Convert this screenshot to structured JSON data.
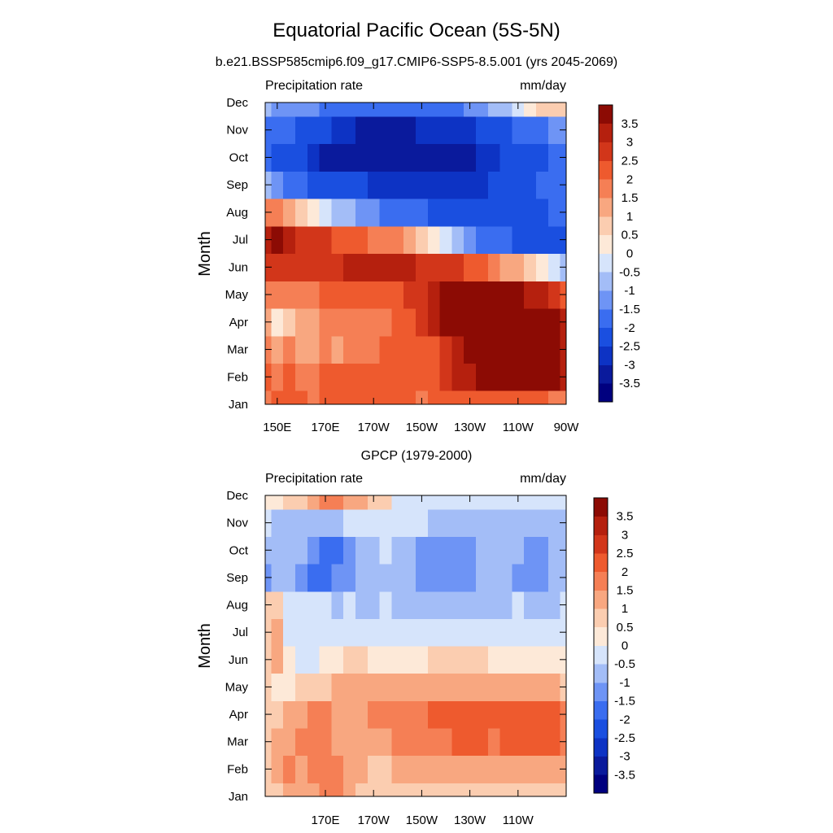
{
  "figure": {
    "title": "Equatorial Pacific Ocean (5S-5N)"
  },
  "colors": {
    "levels": [
      -3.5,
      -3,
      -2.5,
      -2,
      -1.5,
      -1,
      -0.5,
      0,
      0.5,
      1,
      1.5,
      2,
      2.5,
      3,
      3.5
    ],
    "palette": [
      "#00007f",
      "#0a1a9c",
      "#0d33c4",
      "#1a4fe0",
      "#3a6df0",
      "#6e94f5",
      "#a3bdf7",
      "#d6e4fb",
      "#fde9d8",
      "#fbcdb0",
      "#f8a780",
      "#f57f55",
      "#ee5a2e",
      "#d2361a",
      "#b5200e",
      "#8c0b04"
    ]
  },
  "chart_data": [
    {
      "type": "heatmap",
      "title": "b.e21.BSSP585cmip6.f09_g17.CMIP6-SSP5-8.5.001 (yrs 2045-2069)",
      "left_label": "Precipitation rate",
      "right_label": "mm/day",
      "xlabel": "",
      "ylabel": "Month",
      "xlim": [
        145,
        270
      ],
      "x_ticks": [
        150,
        170,
        190,
        210,
        230,
        250,
        270
      ],
      "x_tick_labels": [
        "150E",
        "170E",
        "170W",
        "150W",
        "130W",
        "110W",
        "90W"
      ],
      "y_ticks": [
        "Jan",
        "Feb",
        "Mar",
        "Apr",
        "May",
        "Jun",
        "Jul",
        "Aug",
        "Sep",
        "Oct",
        "Nov",
        "Dec"
      ],
      "x": [
        145,
        150,
        155,
        160,
        165,
        170,
        175,
        180,
        185,
        190,
        195,
        200,
        205,
        210,
        215,
        220,
        225,
        230,
        235,
        240,
        245,
        250,
        255,
        260,
        265,
        270
      ],
      "values": [
        [
          1.5,
          2.0,
          2.0,
          2.0,
          1.5,
          2.0,
          2.0,
          2.0,
          2.0,
          2.0,
          2.0,
          2.0,
          2.0,
          1.5,
          2.0,
          2.0,
          2.0,
          2.0,
          2.0,
          2.0,
          2.0,
          2.0,
          2.0,
          2.0,
          1.5,
          1.5
        ],
        [
          2.0,
          1.5,
          2.0,
          1.5,
          1.5,
          2.0,
          2.0,
          2.0,
          2.0,
          2.0,
          2.0,
          2.0,
          2.0,
          2.0,
          2.0,
          2.5,
          3.0,
          3.0,
          3.5,
          3.5,
          3.5,
          3.5,
          3.5,
          3.5,
          3.5,
          3.0
        ],
        [
          1.5,
          1.0,
          1.5,
          1.0,
          1.0,
          1.5,
          1.0,
          1.5,
          1.5,
          1.5,
          2.0,
          2.0,
          2.0,
          2.0,
          2.0,
          2.5,
          3.0,
          3.5,
          3.5,
          3.5,
          3.5,
          3.5,
          3.5,
          3.5,
          3.5,
          3.0
        ],
        [
          1.0,
          0.0,
          0.5,
          1.0,
          1.0,
          1.5,
          1.5,
          1.5,
          1.5,
          1.5,
          1.5,
          2.0,
          2.0,
          2.5,
          3.0,
          3.5,
          3.5,
          3.5,
          3.5,
          3.5,
          3.5,
          3.5,
          3.5,
          3.5,
          3.5,
          3.0
        ],
        [
          1.5,
          1.5,
          1.5,
          1.5,
          1.5,
          2.0,
          2.0,
          2.0,
          2.0,
          2.0,
          2.0,
          2.0,
          2.5,
          2.5,
          3.0,
          3.5,
          3.5,
          3.5,
          3.5,
          3.5,
          3.5,
          3.5,
          3.0,
          3.0,
          2.5,
          2.0
        ],
        [
          2.5,
          2.5,
          2.5,
          2.5,
          2.5,
          2.5,
          2.5,
          3.0,
          3.0,
          3.0,
          3.0,
          3.0,
          3.0,
          2.5,
          2.5,
          2.5,
          2.5,
          2.0,
          2.0,
          1.5,
          1.0,
          1.0,
          0.5,
          0.0,
          -0.5,
          -1.0
        ],
        [
          3.0,
          3.5,
          3.0,
          2.5,
          2.5,
          2.5,
          2.0,
          2.0,
          2.0,
          1.5,
          1.5,
          1.5,
          1.0,
          0.5,
          0.0,
          -0.5,
          -1.0,
          -1.5,
          -2.0,
          -2.0,
          -2.0,
          -2.5,
          -2.5,
          -2.5,
          -2.5,
          -2.5
        ],
        [
          1.5,
          1.5,
          1.0,
          0.5,
          0.0,
          -0.5,
          -1.0,
          -1.0,
          -1.5,
          -1.5,
          -2.0,
          -2.0,
          -2.0,
          -2.0,
          -2.5,
          -2.5,
          -2.5,
          -2.5,
          -2.5,
          -2.5,
          -2.5,
          -2.5,
          -2.5,
          -2.5,
          -2.0,
          -2.0
        ],
        [
          -1.0,
          -1.5,
          -2.0,
          -2.0,
          -2.5,
          -2.5,
          -2.5,
          -2.5,
          -2.5,
          -3.0,
          -3.0,
          -3.0,
          -3.0,
          -3.0,
          -3.0,
          -3.0,
          -3.0,
          -3.0,
          -3.0,
          -2.5,
          -2.5,
          -2.5,
          -2.5,
          -2.0,
          -2.0,
          -2.0
        ],
        [
          -2.0,
          -2.5,
          -2.5,
          -2.5,
          -3.0,
          -3.5,
          -3.5,
          -3.5,
          -3.5,
          -3.5,
          -3.5,
          -3.5,
          -3.5,
          -3.5,
          -3.5,
          -3.5,
          -3.5,
          -3.5,
          -3.0,
          -3.0,
          -2.5,
          -2.5,
          -2.5,
          -2.5,
          -2.0,
          -2.0
        ],
        [
          -2.0,
          -2.0,
          -2.0,
          -2.5,
          -2.5,
          -2.5,
          -3.0,
          -3.0,
          -3.5,
          -3.5,
          -3.5,
          -3.5,
          -3.5,
          -3.0,
          -3.0,
          -3.0,
          -3.0,
          -3.0,
          -2.5,
          -2.5,
          -2.5,
          -2.0,
          -2.0,
          -2.0,
          -1.5,
          -1.5
        ],
        [
          -1.0,
          -1.5,
          -1.5,
          -1.5,
          -1.5,
          -2.0,
          -2.0,
          -2.0,
          -2.0,
          -2.0,
          -2.0,
          -2.0,
          -2.0,
          -2.0,
          -2.0,
          -2.0,
          -2.0,
          -1.5,
          -1.5,
          -1.0,
          -1.0,
          -0.5,
          0.0,
          0.5,
          0.5,
          0.5
        ]
      ]
    },
    {
      "type": "heatmap",
      "title": "GPCP (1979-2000)",
      "left_label": "Precipitation rate",
      "right_label": "mm/day",
      "xlabel": "",
      "ylabel": "Month",
      "xlim": [
        145,
        270
      ],
      "x_ticks": [
        170,
        190,
        210,
        230,
        250
      ],
      "x_tick_labels": [
        "170E",
        "170W",
        "150W",
        "130W",
        "110W"
      ],
      "y_ticks": [
        "Jan",
        "Feb",
        "Mar",
        "Apr",
        "May",
        "Jun",
        "Jul",
        "Aug",
        "Sep",
        "Oct",
        "Nov",
        "Dec"
      ],
      "x": [
        145,
        150,
        155,
        160,
        165,
        170,
        175,
        180,
        185,
        190,
        195,
        200,
        205,
        210,
        215,
        220,
        225,
        230,
        235,
        240,
        245,
        250,
        255,
        260,
        265,
        270
      ],
      "values": [
        [
          0.5,
          0.5,
          1.0,
          1.0,
          1.0,
          1.5,
          1.5,
          1.0,
          0.5,
          0.5,
          0.5,
          0.5,
          0.5,
          0.5,
          0.5,
          0.5,
          0.5,
          0.5,
          0.5,
          0.5,
          0.5,
          0.5,
          0.5,
          0.5,
          0.5,
          0.5
        ],
        [
          0.5,
          1.0,
          1.5,
          1.0,
          1.5,
          1.5,
          1.5,
          1.0,
          1.0,
          0.5,
          0.5,
          1.0,
          1.0,
          1.0,
          1.0,
          1.0,
          1.0,
          1.0,
          1.0,
          1.0,
          1.0,
          1.0,
          1.0,
          1.0,
          1.0,
          1.0
        ],
        [
          0.5,
          1.0,
          1.0,
          1.5,
          1.5,
          1.5,
          1.0,
          1.0,
          1.0,
          1.0,
          1.0,
          1.5,
          1.5,
          1.5,
          1.5,
          1.5,
          2.0,
          2.0,
          2.0,
          1.5,
          2.0,
          2.0,
          2.0,
          2.0,
          2.0,
          1.5
        ],
        [
          0.5,
          0.5,
          1.0,
          1.0,
          1.5,
          1.5,
          1.0,
          1.0,
          1.0,
          1.5,
          1.5,
          1.5,
          1.5,
          1.5,
          2.0,
          2.0,
          2.0,
          2.0,
          2.0,
          2.0,
          2.0,
          2.0,
          2.0,
          2.0,
          2.0,
          1.5
        ],
        [
          0.5,
          0.0,
          0.0,
          0.5,
          0.5,
          0.5,
          1.0,
          1.0,
          1.0,
          1.0,
          1.0,
          1.0,
          1.0,
          1.0,
          1.0,
          1.0,
          1.0,
          1.0,
          1.0,
          1.0,
          1.0,
          1.0,
          1.0,
          1.0,
          1.0,
          0.5
        ],
        [
          0.5,
          1.0,
          0.0,
          -0.5,
          -0.5,
          0.0,
          0.0,
          0.5,
          0.5,
          0.0,
          0.0,
          0.0,
          0.0,
          0.0,
          0.5,
          0.5,
          0.5,
          0.5,
          0.5,
          0.0,
          0.0,
          0.0,
          0.0,
          0.0,
          0.0,
          0.0
        ],
        [
          0.5,
          1.0,
          -0.5,
          -0.5,
          -0.5,
          -0.5,
          -0.5,
          -0.5,
          -0.5,
          -0.5,
          -0.5,
          -0.5,
          -0.5,
          -0.5,
          -0.5,
          -0.5,
          -0.5,
          -0.5,
          -0.5,
          -0.5,
          -0.5,
          -0.5,
          -0.5,
          -0.5,
          -0.5,
          -0.5
        ],
        [
          0.5,
          0.5,
          -0.5,
          -0.5,
          -0.5,
          -0.5,
          -1.0,
          -0.5,
          -1.0,
          -1.0,
          -0.5,
          -1.0,
          -1.0,
          -1.0,
          -1.0,
          -1.0,
          -1.0,
          -1.0,
          -1.0,
          -1.0,
          -1.0,
          -0.5,
          -1.0,
          -1.0,
          -1.0,
          -0.5
        ],
        [
          -1.5,
          -1.0,
          -1.0,
          -1.5,
          -2.0,
          -2.0,
          -1.5,
          -1.5,
          -1.0,
          -1.0,
          -1.0,
          -1.0,
          -1.0,
          -1.5,
          -1.5,
          -1.5,
          -1.5,
          -1.5,
          -1.0,
          -1.0,
          -1.0,
          -1.5,
          -1.5,
          -1.5,
          -1.0,
          -1.0
        ],
        [
          -1.0,
          -1.0,
          -1.0,
          -1.0,
          -1.5,
          -2.0,
          -2.0,
          -1.5,
          -1.0,
          -1.0,
          -0.5,
          -1.0,
          -1.0,
          -1.5,
          -1.5,
          -1.5,
          -1.5,
          -1.5,
          -1.0,
          -1.0,
          -1.0,
          -1.0,
          -1.5,
          -1.5,
          -1.0,
          -1.0
        ],
        [
          -0.5,
          -1.0,
          -1.0,
          -1.0,
          -1.0,
          -1.0,
          -1.0,
          -0.5,
          -0.5,
          -0.5,
          -0.5,
          -0.5,
          -0.5,
          -0.5,
          -1.0,
          -1.0,
          -1.0,
          -1.0,
          -1.0,
          -1.0,
          -1.0,
          -1.0,
          -1.0,
          -1.0,
          -1.0,
          -1.0
        ],
        [
          0.0,
          0.0,
          0.5,
          0.5,
          1.0,
          1.5,
          1.5,
          1.0,
          1.0,
          0.5,
          0.5,
          -0.5,
          -0.5,
          -0.5,
          -0.5,
          -0.5,
          -0.5,
          -0.5,
          -0.5,
          -0.5,
          -0.5,
          -0.5,
          -0.5,
          -0.5,
          -0.5,
          -0.5
        ]
      ]
    }
  ]
}
